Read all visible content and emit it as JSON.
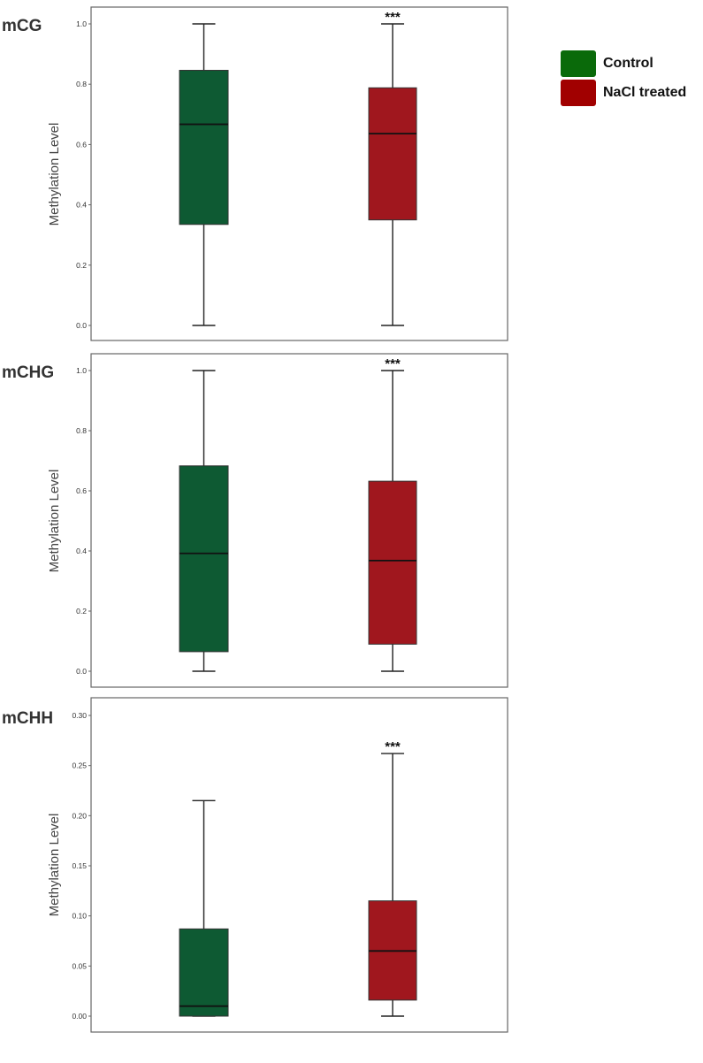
{
  "colors": {
    "control": "#0e5a33",
    "nacl": "#a0171e",
    "legend_control": "#0a6a0a",
    "legend_nacl": "#a10000"
  },
  "legend": [
    {
      "label": "Control",
      "color_key": "legend_control"
    },
    {
      "label": "NaCl treated",
      "color_key": "legend_nacl"
    }
  ],
  "chart_data": [
    {
      "type": "box",
      "panel_label": "mCG",
      "ylabel": "Methylation Level",
      "ylim": [
        0,
        1.0
      ],
      "yticks": [
        "0.0",
        "0.2",
        "0.4",
        "0.6",
        "0.8",
        "1.0"
      ],
      "ytick_values": [
        0,
        0.2,
        0.4,
        0.6,
        0.8,
        1.0
      ],
      "grid": false,
      "boxes": [
        {
          "group": "Control",
          "min": 0.0,
          "q1": 0.335,
          "median": 0.667,
          "q3": 0.846,
          "max": 1.0,
          "significance": ""
        },
        {
          "group": "NaCl treated",
          "min": 0.0,
          "q1": 0.35,
          "median": 0.636,
          "q3": 0.788,
          "max": 1.0,
          "significance": "***"
        }
      ]
    },
    {
      "type": "box",
      "panel_label": "mCHG",
      "ylabel": "Methylation Level",
      "ylim": [
        0,
        1.0
      ],
      "yticks": [
        "0.0",
        "0.2",
        "0.4",
        "0.6",
        "0.8",
        "1.0"
      ],
      "ytick_values": [
        0,
        0.2,
        0.4,
        0.6,
        0.8,
        1.0
      ],
      "grid": false,
      "boxes": [
        {
          "group": "Control",
          "min": 0.0,
          "q1": 0.065,
          "median": 0.392,
          "q3": 0.683,
          "max": 1.0,
          "significance": ""
        },
        {
          "group": "NaCl treated",
          "min": 0.0,
          "q1": 0.09,
          "median": 0.368,
          "q3": 0.632,
          "max": 1.0,
          "significance": "***"
        }
      ]
    },
    {
      "type": "box",
      "panel_label": "mCHH",
      "ylabel": "Methylation Level",
      "ylim": [
        0,
        0.3
      ],
      "yticks": [
        "0.00",
        "0.05",
        "0.10",
        "0.15",
        "0.20",
        "0.25",
        "0.30"
      ],
      "ytick_values": [
        0,
        0.05,
        0.1,
        0.15,
        0.2,
        0.25,
        0.3
      ],
      "grid": false,
      "boxes": [
        {
          "group": "Control",
          "min": 0.0,
          "q1": 0.0,
          "median": 0.01,
          "q3": 0.087,
          "max": 0.215,
          "significance": ""
        },
        {
          "group": "NaCl treated",
          "min": 0.0,
          "q1": 0.016,
          "median": 0.065,
          "q3": 0.115,
          "max": 0.262,
          "significance": "***"
        }
      ]
    }
  ]
}
